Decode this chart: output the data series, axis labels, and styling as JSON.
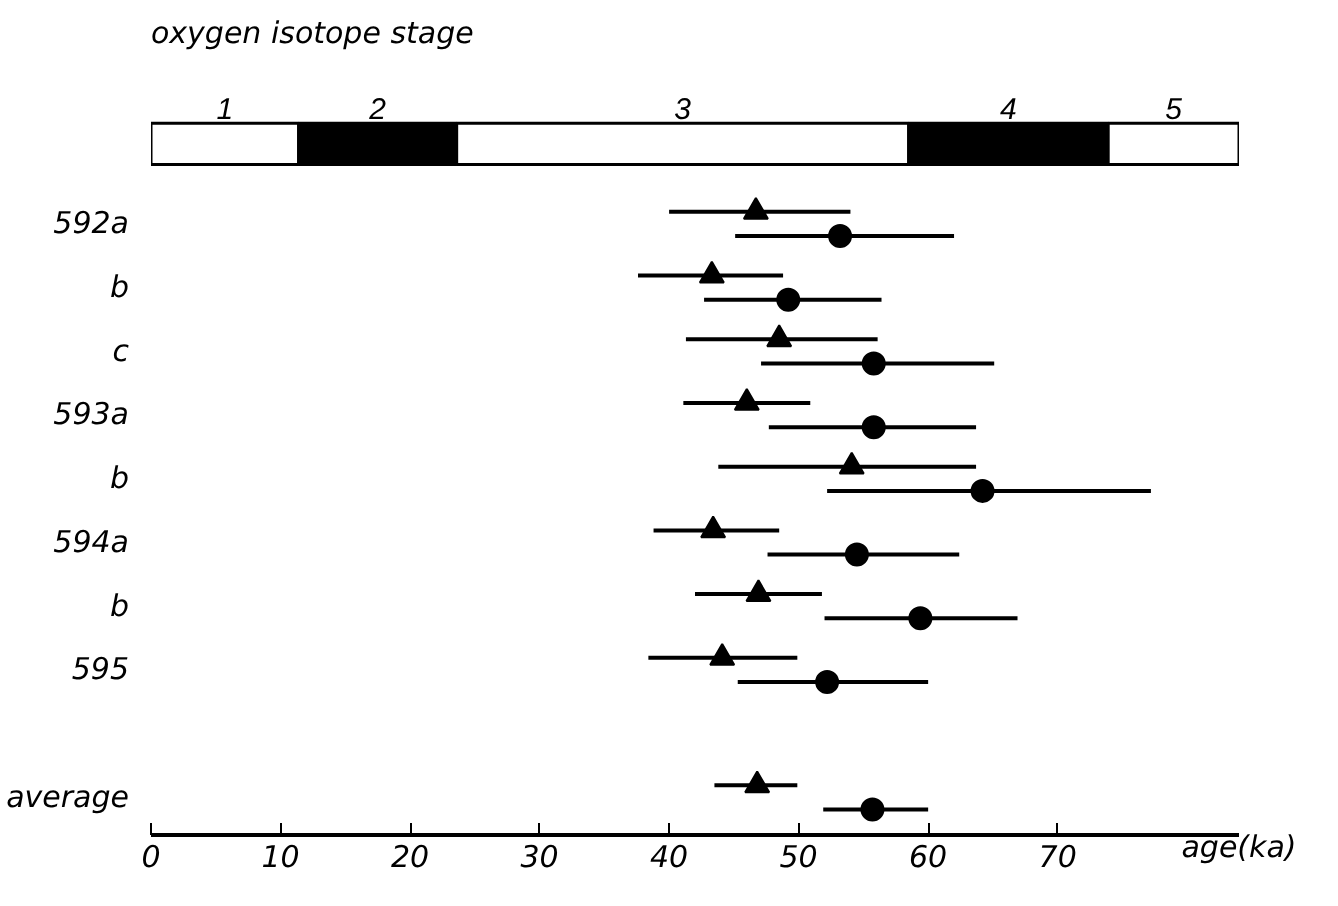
{
  "chart_data": [
    {
      "type": "bar",
      "title": "oxygen isotope stage",
      "orientation": "horizontal",
      "stacked": true,
      "categories": [
        null
      ],
      "xlim": [
        0,
        84
      ],
      "tick_labels": false,
      "series": [
        {
          "name": "1",
          "color": "#ffffff",
          "values": [
            11.4
          ]
        },
        {
          "name": "2",
          "color": "#000000",
          "values": [
            12.2
          ]
        },
        {
          "name": "3",
          "color": "#ffffff",
          "values": [
            34.9
          ]
        },
        {
          "name": "4",
          "color": "#000000",
          "values": [
            15.4
          ]
        },
        {
          "name": "5",
          "color": "#ffffff",
          "values": [
            10.1
          ]
        }
      ]
    },
    {
      "type": "scatter",
      "xlabel": "age(ka)",
      "orientation": "horizontal",
      "categories": [
        "592a",
        "b",
        "c",
        "593a",
        "b",
        "594a",
        "b",
        "595",
        null,
        "average"
      ],
      "xlim": [
        0,
        84
      ],
      "xticks": [
        0,
        10,
        20,
        30,
        40,
        50,
        60,
        70
      ],
      "grid": false,
      "series": [
        {
          "color": "#000000",
          "marker": "triangle",
          "values": [
            46.7,
            43.3,
            48.5,
            46.0,
            54.1,
            43.4,
            46.9,
            44.1,
            null,
            46.8
          ],
          "errors": [
            [
              40.0,
              54.0
            ],
            [
              37.6,
              48.8
            ],
            [
              41.3,
              56.1
            ],
            [
              41.1,
              50.9
            ],
            [
              43.8,
              63.7
            ],
            [
              38.8,
              48.5
            ],
            [
              42.0,
              51.8
            ],
            [
              38.4,
              49.9
            ],
            null,
            [
              43.5,
              49.9
            ]
          ]
        },
        {
          "color": "#000000",
          "marker": "circle",
          "values": [
            53.2,
            49.2,
            55.8,
            55.8,
            64.2,
            54.5,
            59.4,
            52.2,
            null,
            55.7
          ],
          "errors": [
            [
              45.1,
              62.0
            ],
            [
              42.7,
              56.4
            ],
            [
              47.1,
              65.1
            ],
            [
              47.7,
              63.7
            ],
            [
              52.2,
              77.2
            ],
            [
              47.6,
              62.4
            ],
            [
              52.0,
              66.9
            ],
            [
              45.3,
              60.0
            ],
            null,
            [
              51.9,
              60.0
            ]
          ]
        }
      ]
    }
  ]
}
